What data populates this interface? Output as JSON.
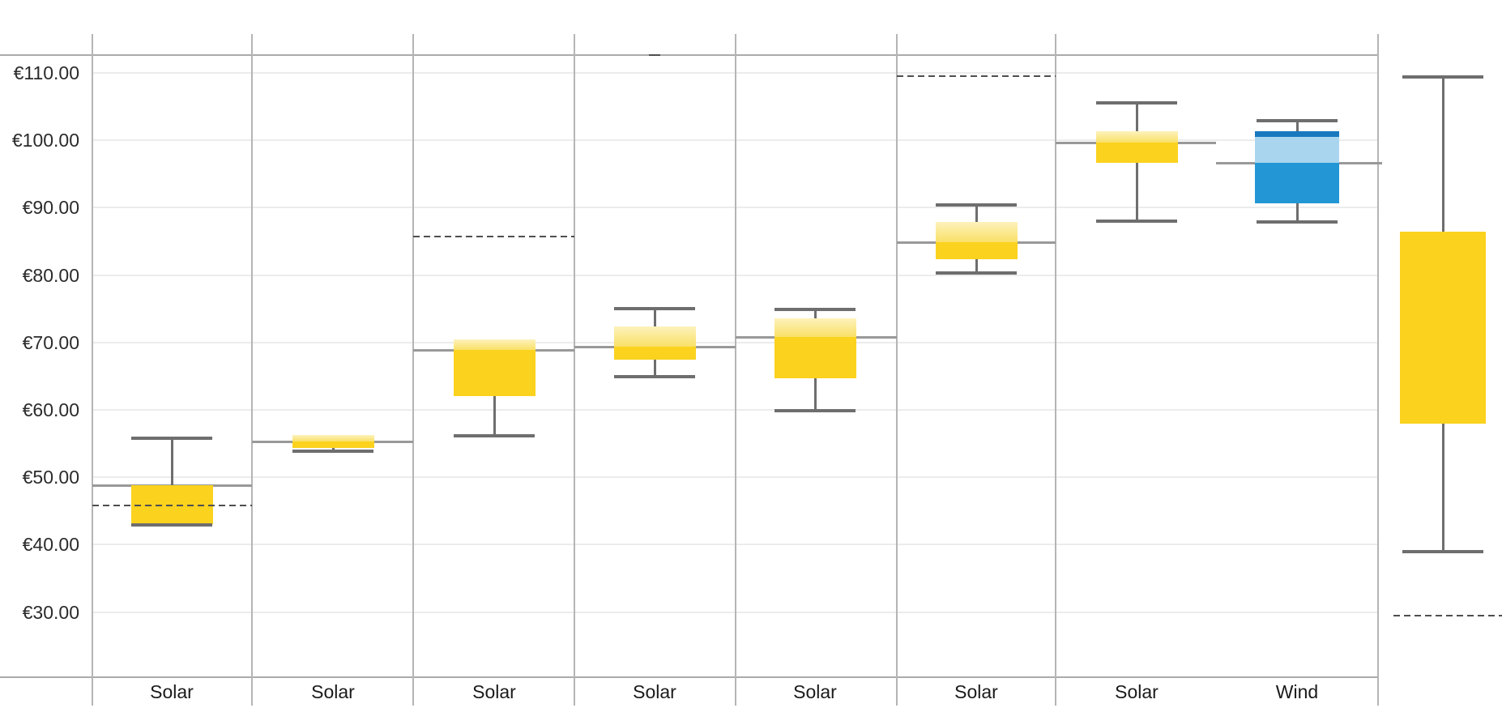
{
  "chart_data": {
    "type": "boxplot",
    "title": "",
    "xlabel": "",
    "ylabel": "",
    "currency": "EUR",
    "y_axis": {
      "tick_labels": [
        "€110.00",
        "€100.00",
        "€90.00",
        "€80.00",
        "€70.00",
        "€60.00",
        "€50.00",
        "€40.00",
        "€30.00"
      ],
      "tick_values": [
        110,
        100,
        90,
        80,
        70,
        60,
        50,
        40,
        30
      ],
      "ylim": [
        22,
        113
      ],
      "grid": true
    },
    "categories": [
      "Solar",
      "Solar",
      "Solar",
      "Solar",
      "Solar",
      "Solar",
      "Solar",
      "Wind",
      ""
    ],
    "series": [
      {
        "category": "Solar",
        "scheme": "solar",
        "high": 55.8,
        "q3": 48.8,
        "split": 48.8,
        "q1": 43.1,
        "low": 42.9,
        "reference": 48.8,
        "dashed": 45.9,
        "dashed_fragment": false
      },
      {
        "category": "Solar",
        "scheme": "solar",
        "high": null,
        "q3": 56.3,
        "split": 55.3,
        "q1": 54.4,
        "low": 53.9,
        "reference": 55.3,
        "dashed": null,
        "dashed_fragment": false
      },
      {
        "category": "Solar",
        "scheme": "solar",
        "high": null,
        "q3": 70.5,
        "split": 68.9,
        "q1": 62.0,
        "low": 56.1,
        "reference": 68.9,
        "dashed": 85.9,
        "dashed_fragment": false
      },
      {
        "category": "Solar",
        "scheme": "solar",
        "high": 75.0,
        "q3": 72.4,
        "split": 69.4,
        "q1": 67.4,
        "low": 64.9,
        "reference": 69.4,
        "dashed": 112.8,
        "dashed_fragment": true
      },
      {
        "category": "Solar",
        "scheme": "solar",
        "high": 74.9,
        "q3": 73.6,
        "split": 70.8,
        "q1": 64.7,
        "low": 59.9,
        "reference": 70.8,
        "dashed": null,
        "dashed_fragment": false
      },
      {
        "category": "Solar",
        "scheme": "solar",
        "high": 90.4,
        "q3": 87.9,
        "split": 84.9,
        "q1": 82.4,
        "low": 80.3,
        "reference": 84.9,
        "dashed": 109.6,
        "dashed_fragment": false
      },
      {
        "category": "Solar",
        "scheme": "solar",
        "high": 105.5,
        "q3": 101.4,
        "split": 99.7,
        "q1": 96.6,
        "low": 88.0,
        "reference": 99.7,
        "dashed": null,
        "dashed_fragment": false
      },
      {
        "category": "Wind",
        "scheme": "wind",
        "high": 102.9,
        "q3": 101.4,
        "strip_to": 100.5,
        "split": 96.7,
        "q1": 90.7,
        "low": 87.9,
        "reference": 96.7,
        "dashed": null,
        "dashed_fragment": false
      },
      {
        "category": "",
        "scheme": "solar",
        "high": 109.4,
        "q3": 86.4,
        "split": null,
        "q1": 58.0,
        "low": 39.0,
        "reference": null,
        "dashed": 29.6,
        "dashed_fragment": false
      }
    ]
  },
  "colors": {
    "solar_strong": "#FBD21E",
    "solar_pale_top": "#FDF2BC",
    "solar_pale_bottom": "#F9E066",
    "wind_strong": "#2396D5",
    "wind_pale": "#A9D6EE",
    "wind_strip": "#1879BF",
    "whisker": "#6E6E6E",
    "reference_line": "#999999",
    "dashed_line": "#4F4F4F",
    "grid": "#ECECEC",
    "panel_border": "#B5B5B5",
    "axis_line": "#ABABAB",
    "axis_label": "#2B2B2B",
    "category_label": "#1A1A1A",
    "background": "#FFFFFF"
  }
}
